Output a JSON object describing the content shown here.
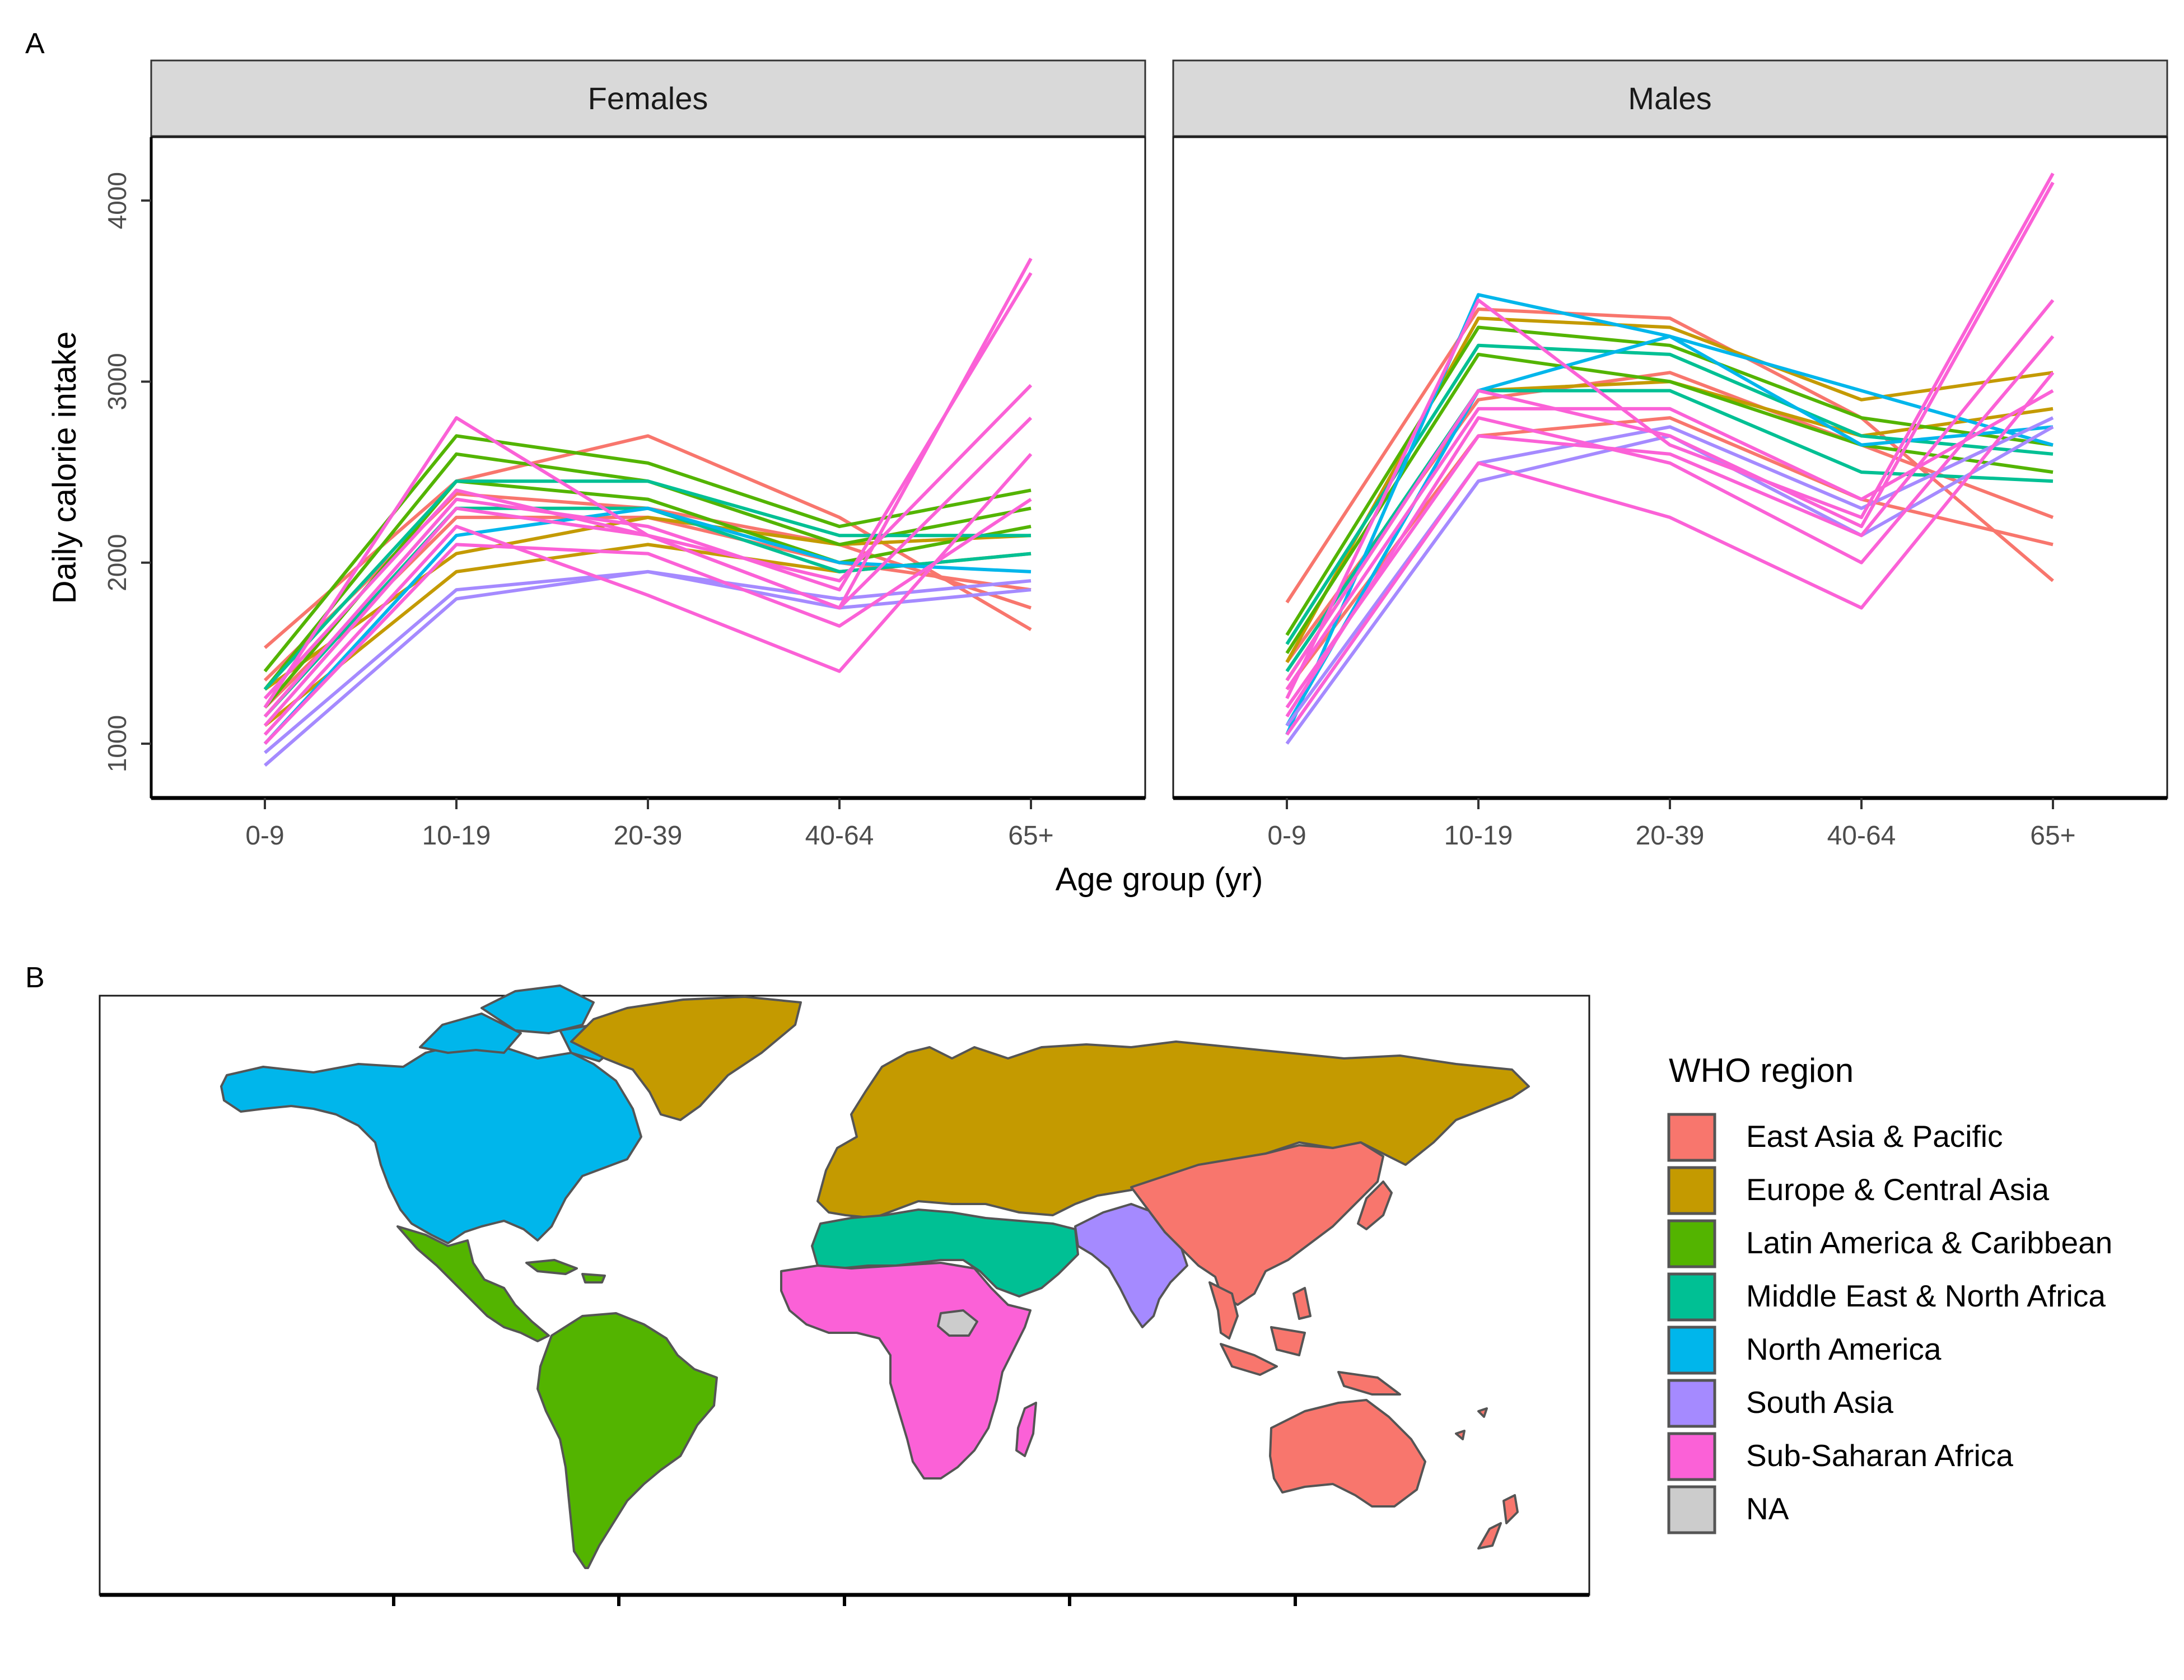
{
  "panels": {
    "a_label": "A",
    "b_label": "B"
  },
  "chart_data": [
    {
      "type": "line",
      "facets": [
        "Females",
        "Males"
      ],
      "categories": [
        "0-9",
        "10-19",
        "20-39",
        "40-64",
        "65+"
      ],
      "xlabel": "Age group (yr)",
      "ylabel": "Daily calorie intake",
      "ylim": [
        700,
        4350
      ],
      "yticks": [
        1000,
        2000,
        3000,
        4000
      ],
      "grid": false,
      "series_note": "one line per country, coloured by WHO region (values approximate, representative subset)",
      "series": [
        {
          "region": "East Asia & Pacific",
          "facet": "Females",
          "values": [
            1530,
            2450,
            2700,
            2250,
            1630
          ]
        },
        {
          "region": "East Asia & Pacific",
          "facet": "Females",
          "values": [
            1350,
            2380,
            2300,
            2100,
            1750
          ]
        },
        {
          "region": "East Asia & Pacific",
          "facet": "Females",
          "values": [
            1200,
            2250,
            2250,
            2000,
            1850
          ]
        },
        {
          "region": "Europe & Central Asia",
          "facet": "Females",
          "values": [
            1300,
            2050,
            2250,
            2100,
            2150
          ]
        },
        {
          "region": "Europe & Central Asia",
          "facet": "Females",
          "values": [
            1100,
            1950,
            2100,
            1950,
            2050
          ]
        },
        {
          "region": "Latin America & Caribbean",
          "facet": "Females",
          "values": [
            1400,
            2700,
            2550,
            2200,
            2400
          ]
        },
        {
          "region": "Latin America & Caribbean",
          "facet": "Females",
          "values": [
            1300,
            2600,
            2450,
            2100,
            2300
          ]
        },
        {
          "region": "Latin America & Caribbean",
          "facet": "Females",
          "values": [
            1200,
            2450,
            2350,
            2000,
            2200
          ]
        },
        {
          "region": "Middle East & North Africa",
          "facet": "Females",
          "values": [
            1300,
            2450,
            2450,
            2150,
            2150
          ]
        },
        {
          "region": "Middle East & North Africa",
          "facet": "Females",
          "values": [
            1150,
            2300,
            2300,
            1950,
            2050
          ]
        },
        {
          "region": "North America",
          "facet": "Females",
          "values": [
            1000,
            2150,
            2300,
            2000,
            1950
          ]
        },
        {
          "region": "South Asia",
          "facet": "Females",
          "values": [
            880,
            1800,
            1950,
            1750,
            1850
          ]
        },
        {
          "region": "South Asia",
          "facet": "Females",
          "values": [
            950,
            1850,
            1950,
            1800,
            1900
          ]
        },
        {
          "region": "Sub-Saharan Africa",
          "facet": "Females",
          "values": [
            1200,
            2800,
            2150,
            1750,
            3680
          ]
        },
        {
          "region": "Sub-Saharan Africa",
          "facet": "Females",
          "values": [
            1150,
            2350,
            2200,
            1850,
            3600
          ]
        },
        {
          "region": "Sub-Saharan Africa",
          "facet": "Females",
          "values": [
            1250,
            2400,
            2150,
            1900,
            2980
          ]
        },
        {
          "region": "Sub-Saharan Africa",
          "facet": "Females",
          "values": [
            1100,
            2300,
            2150,
            1750,
            2800
          ]
        },
        {
          "region": "Sub-Saharan Africa",
          "facet": "Females",
          "values": [
            1050,
            2200,
            1820,
            1400,
            2600
          ]
        },
        {
          "region": "Sub-Saharan Africa",
          "facet": "Females",
          "values": [
            1000,
            2100,
            2050,
            1650,
            2350
          ]
        },
        {
          "region": "East Asia & Pacific",
          "facet": "Males",
          "values": [
            1780,
            3400,
            3350,
            2800,
            1900
          ]
        },
        {
          "region": "East Asia & Pacific",
          "facet": "Males",
          "values": [
            1450,
            2900,
            3050,
            2650,
            2250
          ]
        },
        {
          "region": "East Asia & Pacific",
          "facet": "Males",
          "values": [
            1300,
            2700,
            2800,
            2350,
            2100
          ]
        },
        {
          "region": "Europe & Central Asia",
          "facet": "Males",
          "values": [
            1450,
            3350,
            3300,
            2900,
            3050
          ]
        },
        {
          "region": "Europe & Central Asia",
          "facet": "Males",
          "values": [
            1350,
            2950,
            3000,
            2700,
            2850
          ]
        },
        {
          "region": "Latin America & Caribbean",
          "facet": "Males",
          "values": [
            1600,
            3300,
            3200,
            2800,
            2650
          ]
        },
        {
          "region": "Latin America & Caribbean",
          "facet": "Males",
          "values": [
            1500,
            3150,
            3000,
            2650,
            2500
          ]
        },
        {
          "region": "Middle East & North Africa",
          "facet": "Males",
          "values": [
            1550,
            3200,
            3150,
            2700,
            2600
          ]
        },
        {
          "region": "Middle East & North Africa",
          "facet": "Males",
          "values": [
            1400,
            2950,
            2950,
            2500,
            2450
          ]
        },
        {
          "region": "North America",
          "facet": "Males",
          "values": [
            1050,
            3480,
            3250,
            2950,
            2650
          ]
        },
        {
          "region": "North America",
          "facet": "Males",
          "values": [
            1100,
            2950,
            3250,
            2650,
            2750
          ]
        },
        {
          "region": "South Asia",
          "facet": "Males",
          "values": [
            1000,
            2450,
            2700,
            2150,
            2750
          ]
        },
        {
          "region": "South Asia",
          "facet": "Males",
          "values": [
            1100,
            2550,
            2750,
            2300,
            2800
          ]
        },
        {
          "region": "Sub-Saharan Africa",
          "facet": "Males",
          "values": [
            1250,
            3450,
            2650,
            2250,
            4150
          ]
        },
        {
          "region": "Sub-Saharan Africa",
          "facet": "Males",
          "values": [
            1350,
            2950,
            2700,
            2200,
            4100
          ]
        },
        {
          "region": "Sub-Saharan Africa",
          "facet": "Males",
          "values": [
            1200,
            2700,
            2600,
            2150,
            3450
          ]
        },
        {
          "region": "Sub-Saharan Africa",
          "facet": "Males",
          "values": [
            1150,
            2800,
            2550,
            2000,
            3250
          ]
        },
        {
          "region": "Sub-Saharan Africa",
          "facet": "Males",
          "values": [
            1050,
            2550,
            2250,
            1750,
            3050
          ]
        },
        {
          "region": "Sub-Saharan Africa",
          "facet": "Males",
          "values": [
            1300,
            2850,
            2850,
            2350,
            2950
          ]
        }
      ]
    },
    {
      "type": "map",
      "legend_title": "WHO region",
      "legend": [
        {
          "label": "East Asia & Pacific",
          "color": "#F8766D"
        },
        {
          "label": "Europe & Central Asia",
          "color": "#C49A00"
        },
        {
          "label": "Latin America & Caribbean",
          "color": "#53B400"
        },
        {
          "label": "Middle East & North Africa",
          "color": "#00C094"
        },
        {
          "label": "North America",
          "color": "#00B6EB"
        },
        {
          "label": "South Asia",
          "color": "#A58AFF"
        },
        {
          "label": "Sub-Saharan Africa",
          "color": "#FB61D7"
        },
        {
          "label": "NA",
          "color": "#CCCCCC"
        }
      ]
    }
  ]
}
